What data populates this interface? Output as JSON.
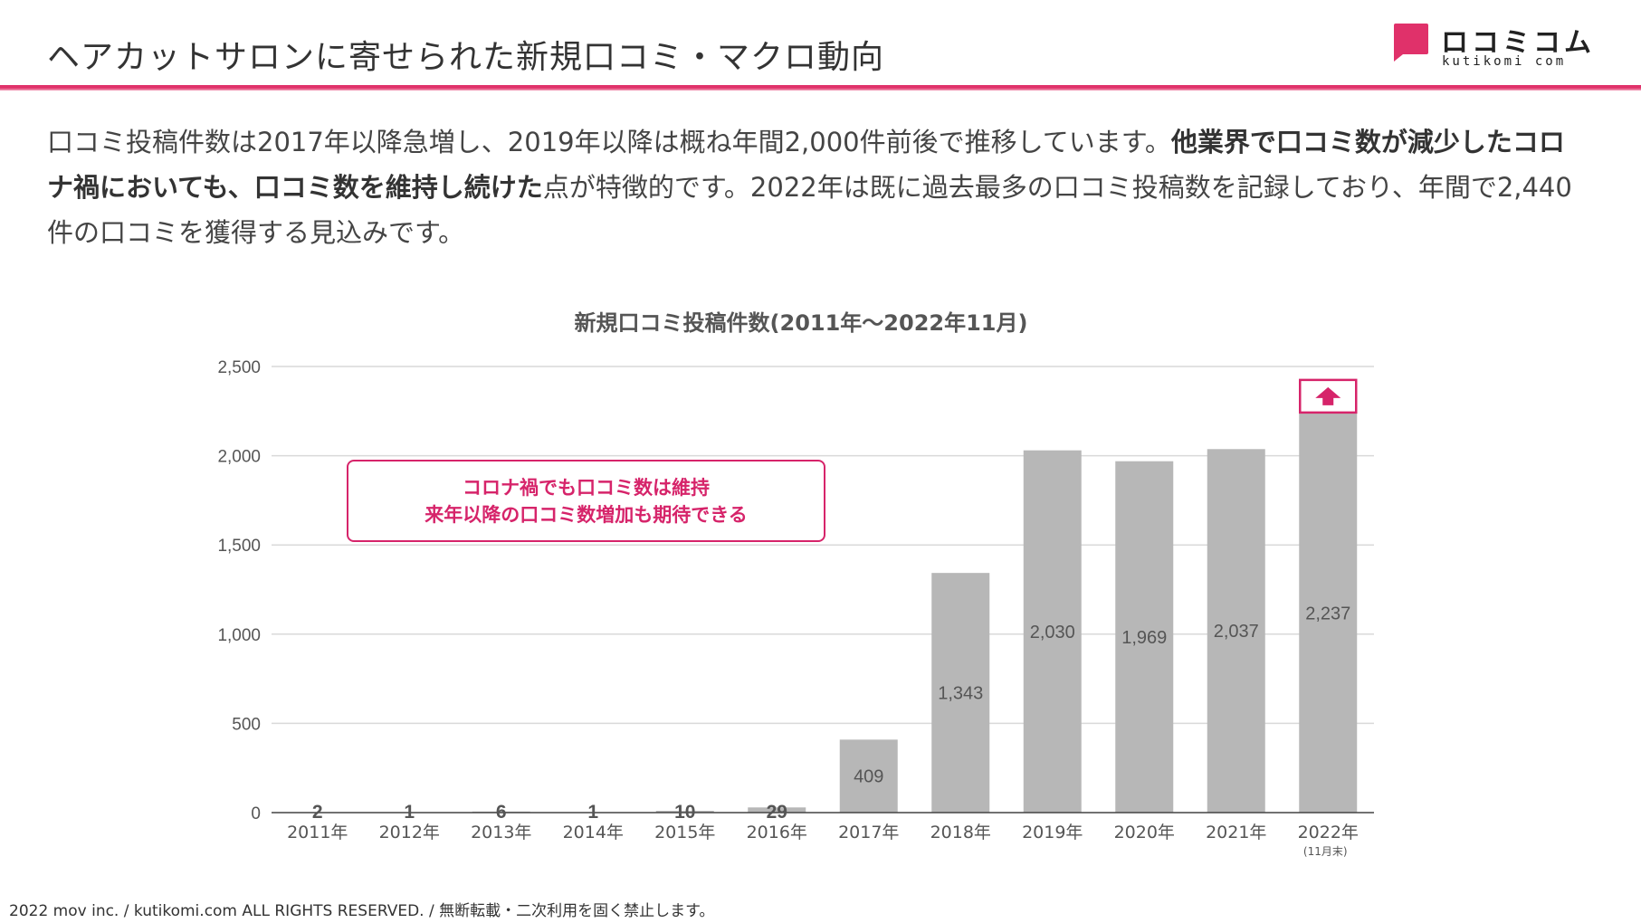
{
  "header": {
    "title": "ヘアカットサロンに寄せられた新規口コミ・マクロ動向",
    "logo_text": "ロコミコム",
    "logo_sub": "kutikomi com"
  },
  "summary": {
    "part1": "口コミ投稿件数は2017年以降急増し、2019年以降は概ね年間2,000件前後で推移しています。",
    "bold": "他業界で口コミ数が減少したコロナ禍においても、口コミ数を維持し続けた",
    "part2": "点が特徴的です。2022年は既に過去最多の口コミ投稿数を記録しており、年間で2,440件の口コミを獲得する見込みです。"
  },
  "callout": {
    "line1": "コロナ禍でも口コミ数は維持",
    "line2": "来年以降の口コミ数増加も期待できる"
  },
  "footer": {
    "copyright": "2022 mov inc. / kutikomi.com ALL RIGHTS RESERVED. / 無断転載・二次利用を固く禁止します。"
  },
  "colors": {
    "accent": "#d6246a",
    "bar": "#b7b7b7",
    "grid": "#d9d9d9"
  },
  "chart_data": {
    "type": "bar",
    "title": "新規口コミ投稿件数(2011年〜2022年11月)",
    "categories": [
      "2011年",
      "2012年",
      "2013年",
      "2014年",
      "2015年",
      "2016年",
      "2017年",
      "2018年",
      "2019年",
      "2020年",
      "2021年",
      "2022年"
    ],
    "category_notes": [
      "",
      "",
      "",
      "",
      "",
      "",
      "",
      "",
      "",
      "",
      "",
      "(11月末)"
    ],
    "values": [
      2,
      1,
      6,
      1,
      10,
      29,
      409,
      1343,
      2030,
      1969,
      2037,
      2237
    ],
    "value_labels": [
      "2",
      "1",
      "6",
      "1",
      "10",
      "29",
      "409",
      "1,343",
      "2,030",
      "1,969",
      "2,037",
      "2,237"
    ],
    "y_ticks": [
      0,
      500,
      1000,
      1500,
      2000,
      2500
    ],
    "y_tick_labels": [
      "0",
      "500",
      "1,000",
      "1,500",
      "2,000",
      "2,500"
    ],
    "ylim": [
      0,
      2500
    ],
    "grid": true,
    "annotation": "up-arrow-icon above 2022年 bar"
  }
}
